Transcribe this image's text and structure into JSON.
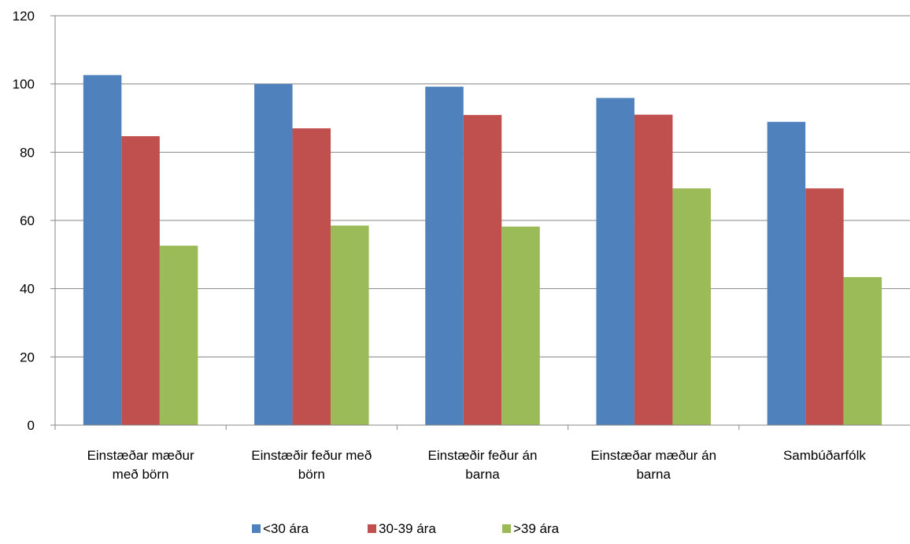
{
  "chart_data": {
    "type": "bar",
    "title": "",
    "xlabel": "",
    "ylabel": "",
    "ylim": [
      0,
      120
    ],
    "yticks": [
      0,
      20,
      40,
      60,
      80,
      100,
      120
    ],
    "grid": true,
    "legend_position": "bottom",
    "categories": [
      [
        "Einstæðar mæður",
        "með börn"
      ],
      [
        "Einstæðir feður með",
        "börn"
      ],
      [
        "Einstæðir feður án",
        "barna"
      ],
      [
        "Einstæðar mæður án",
        "barna"
      ],
      [
        "Sambúðarfólk"
      ]
    ],
    "series": [
      {
        "name": "<30 ára",
        "color": "#4F81BD",
        "values": [
          102.6,
          100.0,
          99.2,
          95.9,
          88.9
        ]
      },
      {
        "name": "30-39 ára",
        "color": "#C0504D",
        "values": [
          84.7,
          87.0,
          90.9,
          91.0,
          69.4
        ]
      },
      {
        "name": ">39 ára",
        "color": "#9BBB59",
        "values": [
          52.6,
          58.5,
          58.2,
          69.4,
          43.4
        ]
      }
    ]
  }
}
